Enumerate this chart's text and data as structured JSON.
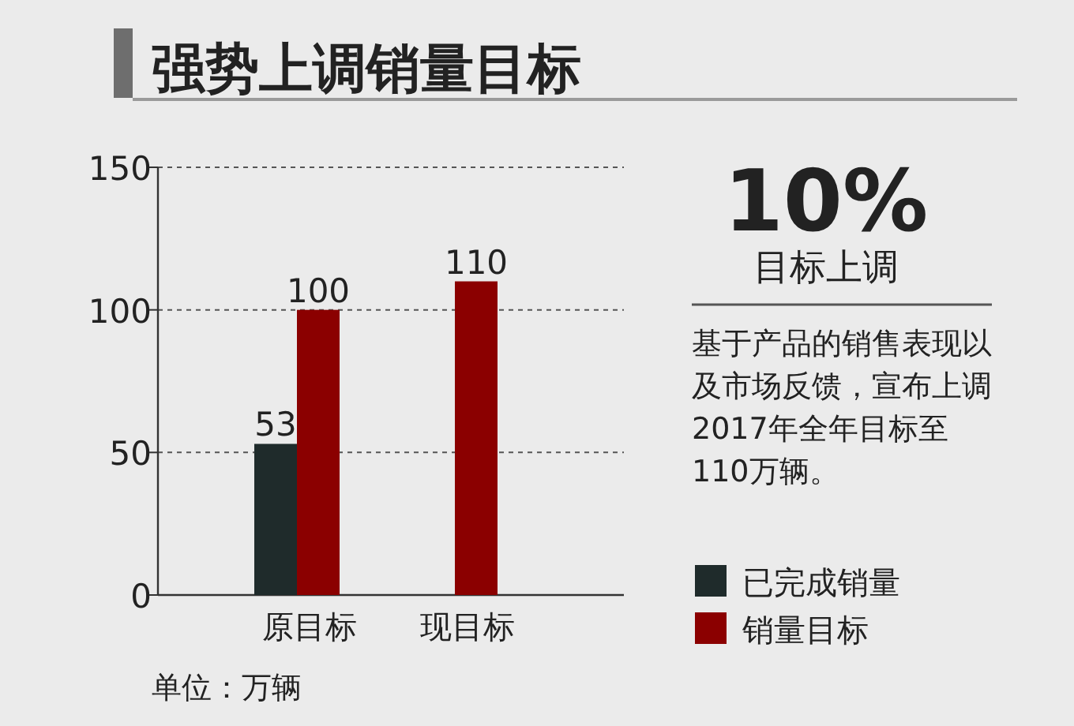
{
  "chart_data": {
    "type": "bar",
    "title": "强势上调销量目标",
    "categories": [
      "原目标",
      "现目标"
    ],
    "series": [
      {
        "name": "已完成销量",
        "color": "#1f2b2b",
        "values": [
          53,
          null
        ]
      },
      {
        "name": "销量目标",
        "color": "#8b0000",
        "values": [
          100,
          110
        ]
      }
    ],
    "ylim": [
      0,
      150
    ],
    "yticks": [
      0,
      50,
      100,
      150
    ],
    "grid": "y",
    "data_labels": true,
    "legend": "right",
    "annotations": [
      "10%",
      "目标上调",
      "基于产品的销售表现以及市场反馈，宣布上调2017年全年目标至110万辆。",
      "单位：万辆"
    ]
  }
}
